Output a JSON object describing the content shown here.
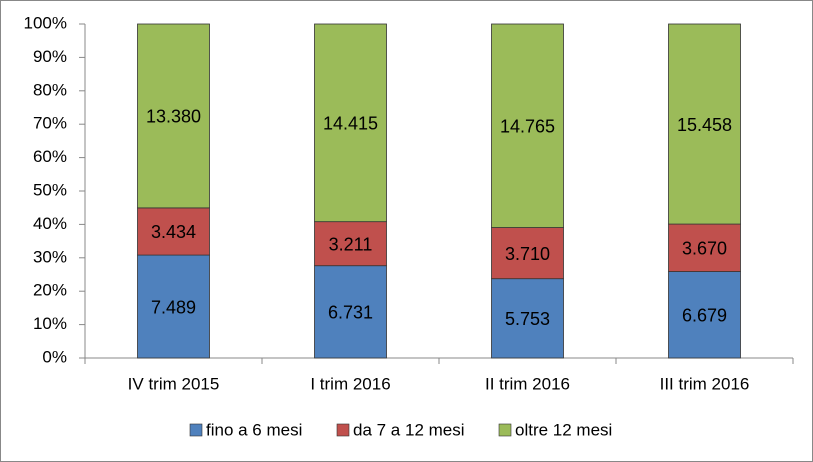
{
  "chart_data": {
    "type": "bar",
    "stacking": "percent",
    "categories": [
      "IV trim 2015",
      "I trim 2016",
      "II trim 2016",
      "III trim 2016"
    ],
    "series": [
      {
        "name": "fino a 6 mesi",
        "color": "#4f81bd",
        "values": [
          7489,
          6731,
          5753,
          6679
        ],
        "value_labels": [
          "7.489",
          "6.731",
          "5.753",
          "6.679"
        ]
      },
      {
        "name": "da 7 a 12 mesi",
        "color": "#c0504d",
        "values": [
          3434,
          3211,
          3710,
          3670
        ],
        "value_labels": [
          "3.434",
          "3.211",
          "3.710",
          "3.670"
        ]
      },
      {
        "name": "oltre 12 mesi",
        "color": "#9bbb59",
        "values": [
          13380,
          14415,
          14765,
          15458
        ],
        "value_labels": [
          "13.380",
          "14.415",
          "14.765",
          "15.458"
        ]
      }
    ],
    "ylim": [
      0,
      100
    ],
    "yticks": [
      {
        "value": 0,
        "label": "0%"
      },
      {
        "value": 10,
        "label": "10%"
      },
      {
        "value": 20,
        "label": "20%"
      },
      {
        "value": 30,
        "label": "30%"
      },
      {
        "value": 40,
        "label": "40%"
      },
      {
        "value": 50,
        "label": "50%"
      },
      {
        "value": 60,
        "label": "60%"
      },
      {
        "value": 70,
        "label": "70%"
      },
      {
        "value": 80,
        "label": "80%"
      },
      {
        "value": 90,
        "label": "90%"
      },
      {
        "value": 100,
        "label": "100%"
      }
    ],
    "legend": "bottom"
  }
}
